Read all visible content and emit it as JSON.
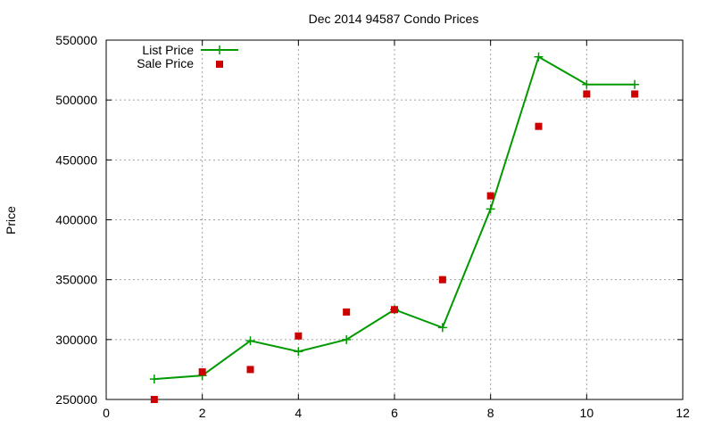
{
  "chart_data": {
    "type": "line",
    "title": "Dec 2014 94587 Condo Prices",
    "xlabel": "",
    "ylabel": "Price",
    "xlim": [
      0,
      12
    ],
    "ylim": [
      250000,
      550000
    ],
    "xticks": [
      0,
      2,
      4,
      6,
      8,
      10,
      12
    ],
    "yticks": [
      250000,
      300000,
      350000,
      400000,
      450000,
      500000,
      550000
    ],
    "grid": true,
    "legend_position": "top-left",
    "series": [
      {
        "name": "List Price",
        "style": "line-with-plus-markers",
        "color": "#009900",
        "x": [
          1,
          2,
          3,
          4,
          5,
          6,
          7,
          8,
          9,
          10,
          11
        ],
        "y": [
          267000,
          270000,
          299000,
          290000,
          300000,
          325000,
          310000,
          409000,
          536000,
          513000,
          513000
        ]
      },
      {
        "name": "Sale Price",
        "style": "square-markers",
        "color": "#cc0000",
        "x": [
          1,
          2,
          3,
          4,
          5,
          6,
          7,
          8,
          9,
          10,
          11
        ],
        "y": [
          250000,
          273000,
          275000,
          303000,
          323000,
          325000,
          350000,
          420000,
          478000,
          505000,
          505000
        ]
      }
    ]
  }
}
